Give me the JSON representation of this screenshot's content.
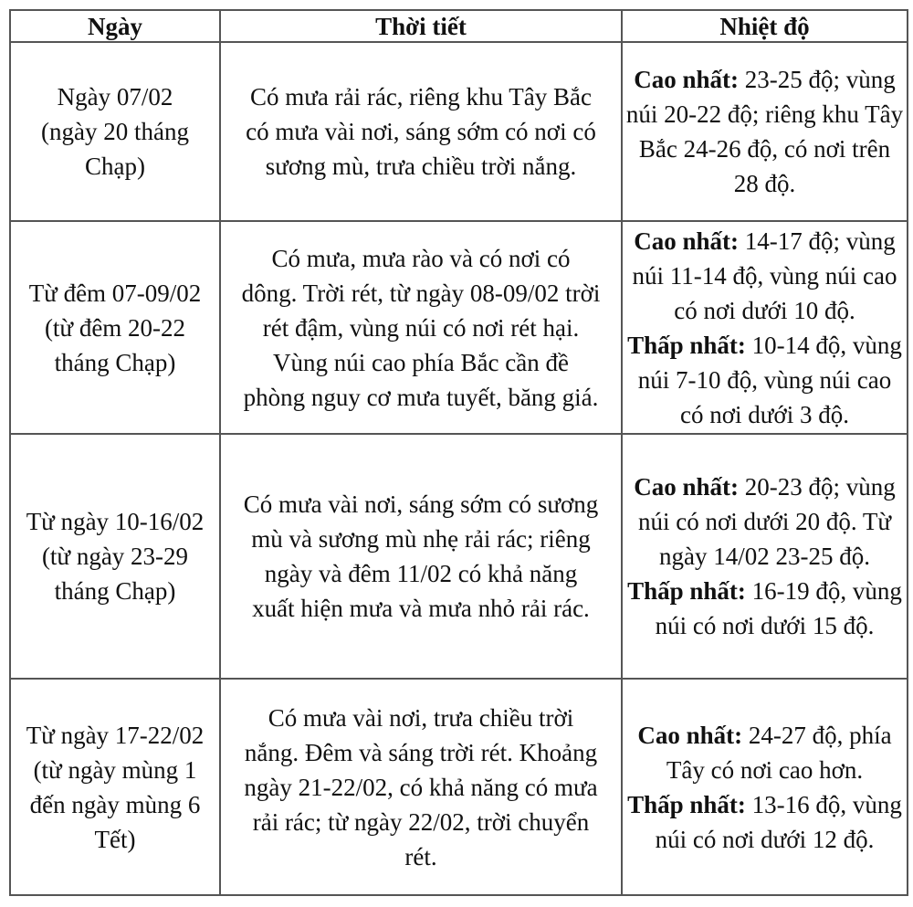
{
  "headers": [
    "Ngày",
    "Thời tiết",
    "Nhiệt độ"
  ],
  "rows": [
    {
      "date": "Ngày 07/02\n(ngày 20 tháng\nChạp)",
      "weather": "Có mưa rải rác, riêng khu Tây Bắc\ncó mưa vài nơi, sáng sớm có nơi có\nsương mù, trưa chiều trời nắng.",
      "high_label": "Cao nhất:",
      "high_text": " 23-25 độ; vùng núi 20-22 độ; riêng khu Tây Bắc 24-26 độ, có nơi trên 28 độ.",
      "low_label": "",
      "low_text": ""
    },
    {
      "date": "Từ đêm 07-09/02\n(từ đêm 20-22\ntháng Chạp)",
      "weather": "Có mưa, mưa rào và có nơi có\ndông. Trời rét, từ ngày 08-09/02 trời\nrét đậm, vùng núi có nơi rét hại.\nVùng núi cao phía Bắc cần đề\nphòng nguy cơ mưa tuyết, băng giá.",
      "high_label": "Cao nhất:",
      "high_text": " 14-17 độ; vùng núi 11-14 độ, vùng núi cao có nơi dưới 10 độ.",
      "low_label": "Thấp nhất:",
      "low_text": " 10-14 độ, vùng núi 7-10 độ, vùng núi cao có nơi dưới 3 độ."
    },
    {
      "date": "Từ ngày 10-16/02\n(từ ngày 23-29\ntháng Chạp)",
      "weather": "Có mưa vài nơi, sáng sớm có sương\nmù và sương mù nhẹ rải rác; riêng\nngày và đêm 11/02 có khả năng\nxuất hiện mưa và mưa nhỏ rải rác.",
      "high_label": "Cao nhất:",
      "high_text": " 20-23 độ; vùng núi có nơi dưới 20 độ. Từ ngày 14/02 23-25 độ.",
      "low_label": "Thấp nhất:",
      "low_text": " 16-19 độ, vùng núi có nơi dưới 15 độ."
    },
    {
      "date": "Từ ngày 17-22/02\n(từ ngày mùng 1\nđến ngày mùng 6\nTết)",
      "weather": "Có mưa vài nơi, trưa chiều trời\nnắng. Đêm và sáng trời rét. Khoảng\nngày 21-22/02, có khả năng có mưa\nrải rác; từ ngày 22/02, trời chuyển\nrét.",
      "high_label": "Cao nhất:",
      "high_text": " 24-27 độ, phía Tây có nơi cao hơn.",
      "low_label": "Thấp nhất:",
      "low_text": " 13-16 độ, vùng núi có nơi dưới 12 độ."
    }
  ]
}
